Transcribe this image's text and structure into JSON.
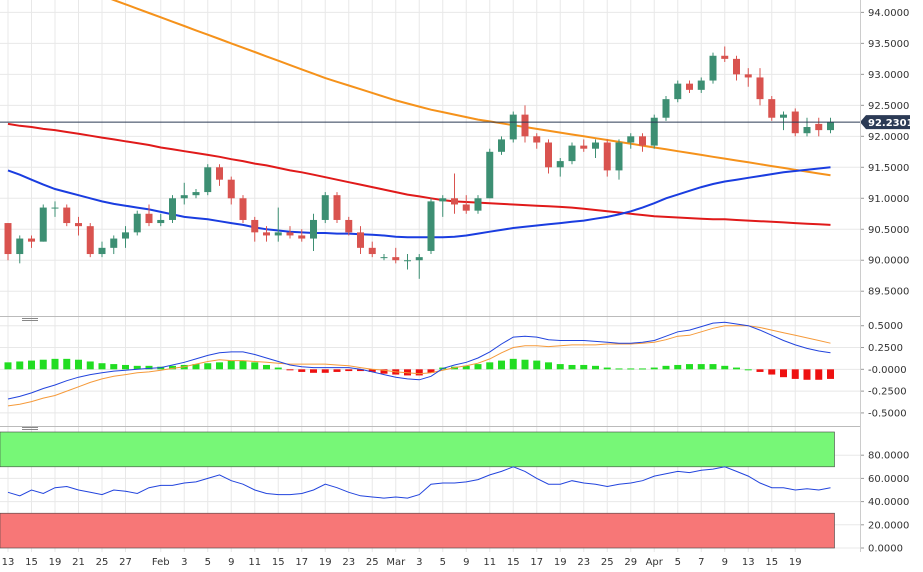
{
  "chart_data": [
    {
      "type": "candlestick",
      "name_note": "",
      "ylim": [
        89.1,
        94.2
      ],
      "y_ticks": [
        "94.0000",
        "93.5000",
        "93.0000",
        "92.5000",
        "92.0000",
        "91.5000",
        "91.0000",
        "90.5000",
        "90.0000",
        "89.5000"
      ],
      "y_tick_values": [
        94.0,
        93.5,
        93.0,
        92.5,
        92.0,
        91.5,
        91.0,
        90.5,
        90.0,
        89.5
      ],
      "last_price_label": "92.2301",
      "last_price": 92.23,
      "colors": {
        "up": "#3d8f73",
        "down": "#d9534f",
        "ma_fast": "#1a3de0",
        "ma_mid": "#e01a1a",
        "ma_slow": "#f5921b",
        "last_line": "#2b3a55",
        "label_bg": "#2b3a55"
      },
      "candles": [
        [
          90.6,
          90.6,
          90.0,
          90.1
        ],
        [
          90.1,
          90.4,
          89.95,
          90.35
        ],
        [
          90.35,
          90.4,
          90.2,
          90.3
        ],
        [
          90.3,
          90.9,
          90.3,
          90.85
        ],
        [
          90.85,
          90.95,
          90.7,
          90.85
        ],
        [
          90.85,
          90.9,
          90.55,
          90.6
        ],
        [
          90.6,
          90.7,
          90.4,
          90.55
        ],
        [
          90.55,
          90.6,
          90.05,
          90.1
        ],
        [
          90.1,
          90.3,
          90.05,
          90.2
        ],
        [
          90.2,
          90.4,
          90.1,
          90.35
        ],
        [
          90.35,
          90.55,
          90.2,
          90.45
        ],
        [
          90.45,
          90.8,
          90.4,
          90.75
        ],
        [
          90.75,
          90.9,
          90.55,
          90.6
        ],
        [
          90.6,
          90.75,
          90.55,
          90.65
        ],
        [
          90.65,
          91.05,
          90.6,
          91.0
        ],
        [
          91.0,
          91.25,
          90.9,
          91.05
        ],
        [
          91.05,
          91.15,
          91.0,
          91.1
        ],
        [
          91.1,
          91.55,
          91.05,
          91.5
        ],
        [
          91.5,
          91.55,
          91.2,
          91.3
        ],
        [
          91.3,
          91.35,
          90.9,
          91.0
        ],
        [
          91.0,
          91.05,
          90.6,
          90.65
        ],
        [
          90.65,
          90.7,
          90.3,
          90.45
        ],
        [
          90.45,
          90.55,
          90.3,
          90.4
        ],
        [
          90.4,
          90.85,
          90.3,
          90.45
        ],
        [
          90.45,
          90.55,
          90.35,
          90.4
        ],
        [
          90.4,
          90.5,
          90.3,
          90.35
        ],
        [
          90.35,
          90.75,
          90.15,
          90.65
        ],
        [
          90.65,
          91.1,
          90.6,
          91.05
        ],
        [
          91.05,
          91.1,
          90.6,
          90.65
        ],
        [
          90.65,
          90.7,
          90.4,
          90.45
        ],
        [
          90.45,
          90.55,
          90.1,
          90.2
        ],
        [
          90.2,
          90.3,
          90.05,
          90.1
        ],
        [
          90.05,
          90.1,
          90.0,
          90.05
        ],
        [
          90.05,
          90.2,
          89.95,
          90.0
        ],
        [
          90.0,
          90.1,
          89.85,
          90.0
        ],
        [
          90.0,
          90.1,
          89.7,
          90.05
        ],
        [
          90.15,
          91.0,
          90.1,
          90.95
        ],
        [
          90.95,
          91.05,
          90.7,
          91.0
        ],
        [
          91.0,
          91.4,
          90.75,
          90.9
        ],
        [
          90.9,
          91.05,
          90.75,
          90.8
        ],
        [
          90.8,
          91.05,
          90.75,
          91.0
        ],
        [
          91.0,
          91.8,
          91.0,
          91.75
        ],
        [
          91.75,
          92.0,
          91.7,
          91.95
        ],
        [
          91.95,
          92.4,
          91.9,
          92.35
        ],
        [
          92.35,
          92.5,
          91.9,
          92.0
        ],
        [
          92.0,
          92.05,
          91.8,
          91.9
        ],
        [
          91.9,
          91.95,
          91.4,
          91.5
        ],
        [
          91.5,
          91.65,
          91.35,
          91.6
        ],
        [
          91.6,
          91.9,
          91.55,
          91.85
        ],
        [
          91.85,
          91.95,
          91.75,
          91.8
        ],
        [
          91.8,
          91.95,
          91.65,
          91.9
        ],
        [
          91.9,
          91.95,
          91.35,
          91.45
        ],
        [
          91.45,
          91.95,
          91.3,
          91.9
        ],
        [
          91.9,
          92.05,
          91.8,
          92.0
        ],
        [
          92.0,
          92.05,
          91.75,
          91.85
        ],
        [
          91.85,
          92.35,
          91.8,
          92.3
        ],
        [
          92.3,
          92.65,
          92.25,
          92.6
        ],
        [
          92.6,
          92.9,
          92.55,
          92.85
        ],
        [
          92.85,
          92.9,
          92.7,
          92.75
        ],
        [
          92.75,
          92.95,
          92.7,
          92.9
        ],
        [
          92.9,
          93.35,
          92.85,
          93.3
        ],
        [
          93.3,
          93.45,
          93.2,
          93.25
        ],
        [
          93.25,
          93.3,
          92.9,
          93.0
        ],
        [
          93.0,
          93.1,
          92.8,
          92.95
        ],
        [
          92.95,
          93.1,
          92.5,
          92.6
        ],
        [
          92.6,
          92.65,
          92.25,
          92.3
        ],
        [
          92.3,
          92.4,
          92.1,
          92.35
        ],
        [
          92.4,
          92.45,
          92.0,
          92.05
        ],
        [
          92.05,
          92.3,
          92.0,
          92.15
        ],
        [
          92.2,
          92.3,
          92.0,
          92.1
        ],
        [
          92.1,
          92.3,
          92.05,
          92.23
        ]
      ],
      "ma_fast": [
        91.45,
        91.38,
        91.3,
        91.22,
        91.15,
        91.1,
        91.05,
        91.0,
        90.95,
        90.91,
        90.88,
        90.85,
        90.82,
        90.78,
        90.74,
        90.7,
        90.68,
        90.66,
        90.63,
        90.6,
        90.57,
        90.53,
        90.5,
        90.48,
        90.46,
        90.45,
        90.44,
        90.44,
        90.43,
        90.43,
        90.42,
        90.41,
        90.4,
        90.38,
        90.37,
        90.37,
        90.37,
        90.37,
        90.38,
        90.4,
        90.43,
        90.46,
        90.49,
        90.52,
        90.54,
        90.56,
        90.58,
        90.6,
        90.62,
        90.64,
        90.67,
        90.7,
        90.74,
        90.79,
        90.85,
        90.92,
        91.0,
        91.06,
        91.12,
        91.18,
        91.23,
        91.27,
        91.3,
        91.33,
        91.36,
        91.39,
        91.42,
        91.44,
        91.46,
        91.48,
        91.5
      ],
      "ma_mid": [
        92.2,
        92.17,
        92.15,
        92.12,
        92.1,
        92.07,
        92.04,
        92.01,
        91.98,
        91.95,
        91.92,
        91.89,
        91.86,
        91.82,
        91.79,
        91.76,
        91.73,
        91.7,
        91.67,
        91.63,
        91.6,
        91.56,
        91.53,
        91.49,
        91.45,
        91.42,
        91.38,
        91.34,
        91.3,
        91.26,
        91.22,
        91.18,
        91.14,
        91.1,
        91.06,
        91.03,
        91.0,
        90.97,
        90.95,
        90.94,
        90.93,
        90.92,
        90.91,
        90.9,
        90.89,
        90.88,
        90.87,
        90.86,
        90.85,
        90.83,
        90.81,
        90.79,
        90.77,
        90.75,
        90.73,
        90.71,
        90.7,
        90.69,
        90.68,
        90.67,
        90.66,
        90.66,
        90.65,
        90.64,
        90.63,
        90.62,
        90.61,
        90.6,
        90.59,
        90.58,
        90.57
      ],
      "ma_slow": [
        94.85,
        94.77,
        94.7,
        94.62,
        94.55,
        94.48,
        94.41,
        94.34,
        94.27,
        94.2,
        94.13,
        94.06,
        93.99,
        93.92,
        93.85,
        93.78,
        93.71,
        93.64,
        93.57,
        93.5,
        93.43,
        93.36,
        93.29,
        93.22,
        93.15,
        93.08,
        93.01,
        92.94,
        92.88,
        92.82,
        92.76,
        92.7,
        92.64,
        92.58,
        92.53,
        92.48,
        92.43,
        92.39,
        92.35,
        92.31,
        92.27,
        92.24,
        92.21,
        92.18,
        92.15,
        92.12,
        92.09,
        92.06,
        92.03,
        92.0,
        91.97,
        91.94,
        91.91,
        91.88,
        91.85,
        91.82,
        91.79,
        91.76,
        91.73,
        91.7,
        91.67,
        91.64,
        91.61,
        91.58,
        91.55,
        91.52,
        91.49,
        91.46,
        91.43,
        91.4,
        91.37
      ]
    },
    {
      "type": "macd",
      "ylim": [
        -0.65,
        0.6
      ],
      "y_ticks": [
        "0.5000",
        "0.2500",
        "-0.0000",
        "-0.2500",
        "-0.5000"
      ],
      "y_tick_values": [
        0.5,
        0.25,
        0.0,
        -0.25,
        -0.5
      ],
      "colors": {
        "hist_up": "#22dd22",
        "hist_down": "#ee1111",
        "macd": "#2244dd",
        "signal": "#f59a3a"
      },
      "histogram": [
        0.08,
        0.09,
        0.1,
        0.11,
        0.12,
        0.12,
        0.11,
        0.09,
        0.07,
        0.06,
        0.05,
        0.04,
        0.04,
        0.03,
        0.04,
        0.05,
        0.06,
        0.07,
        0.08,
        0.1,
        0.1,
        0.08,
        0.05,
        0.02,
        -0.01,
        -0.03,
        -0.04,
        -0.04,
        -0.03,
        -0.02,
        -0.02,
        -0.03,
        -0.05,
        -0.06,
        -0.07,
        -0.07,
        -0.04,
        0.02,
        0.03,
        0.04,
        0.06,
        0.08,
        0.1,
        0.12,
        0.11,
        0.1,
        0.08,
        0.06,
        0.05,
        0.05,
        0.04,
        0.02,
        0.01,
        0.01,
        0.01,
        0.02,
        0.04,
        0.05,
        0.06,
        0.06,
        0.06,
        0.04,
        0.02,
        0.0,
        -0.03,
        -0.06,
        -0.09,
        -0.11,
        -0.12,
        -0.12,
        -0.11
      ],
      "macd": [
        -0.34,
        -0.31,
        -0.27,
        -0.22,
        -0.18,
        -0.13,
        -0.09,
        -0.06,
        -0.04,
        -0.02,
        -0.01,
        0.0,
        0.01,
        0.02,
        0.05,
        0.08,
        0.12,
        0.16,
        0.19,
        0.2,
        0.2,
        0.17,
        0.13,
        0.09,
        0.05,
        0.03,
        0.02,
        0.02,
        0.02,
        0.02,
        0.0,
        -0.03,
        -0.06,
        -0.09,
        -0.11,
        -0.12,
        -0.08,
        0.01,
        0.05,
        0.08,
        0.13,
        0.2,
        0.29,
        0.37,
        0.38,
        0.37,
        0.34,
        0.33,
        0.33,
        0.33,
        0.32,
        0.31,
        0.3,
        0.3,
        0.31,
        0.33,
        0.38,
        0.43,
        0.45,
        0.49,
        0.53,
        0.54,
        0.52,
        0.5,
        0.45,
        0.39,
        0.33,
        0.28,
        0.24,
        0.21,
        0.19
      ],
      "signal": [
        -0.42,
        -0.4,
        -0.37,
        -0.33,
        -0.3,
        -0.25,
        -0.2,
        -0.15,
        -0.11,
        -0.08,
        -0.06,
        -0.04,
        -0.03,
        -0.01,
        0.01,
        0.03,
        0.06,
        0.09,
        0.11,
        0.1,
        0.1,
        0.09,
        0.08,
        0.07,
        0.06,
        0.06,
        0.06,
        0.06,
        0.05,
        0.04,
        0.02,
        0.0,
        -0.01,
        -0.03,
        -0.04,
        -0.05,
        -0.04,
        -0.01,
        0.02,
        0.04,
        0.07,
        0.12,
        0.19,
        0.25,
        0.27,
        0.27,
        0.26,
        0.27,
        0.28,
        0.28,
        0.28,
        0.29,
        0.29,
        0.29,
        0.3,
        0.31,
        0.34,
        0.38,
        0.39,
        0.43,
        0.47,
        0.5,
        0.5,
        0.5,
        0.48,
        0.45,
        0.42,
        0.39,
        0.36,
        0.33,
        0.3
      ]
    },
    {
      "type": "rsi",
      "ylim": [
        0,
        100
      ],
      "y_ticks": [
        "80.0000",
        "60.0000",
        "40.0000",
        "20.0000",
        "0.0000"
      ],
      "y_tick_values": [
        80,
        60,
        40,
        20,
        0
      ],
      "overbought_band": [
        70,
        100
      ],
      "oversold_band": [
        0,
        30
      ],
      "colors": {
        "overbought": "#77f777",
        "oversold": "#f77777",
        "line": "#2244dd"
      },
      "values": [
        48,
        45,
        50,
        47,
        52,
        53,
        50,
        48,
        46,
        50,
        49,
        47,
        52,
        54,
        54,
        56,
        57,
        60,
        63,
        58,
        55,
        50,
        47,
        46,
        46,
        47,
        50,
        55,
        52,
        48,
        45,
        44,
        43,
        44,
        43,
        46,
        55,
        56,
        56,
        57,
        59,
        63,
        66,
        70,
        66,
        60,
        55,
        55,
        58,
        56,
        55,
        53,
        55,
        56,
        58,
        62,
        64,
        66,
        65,
        67,
        68,
        70,
        66,
        62,
        56,
        52,
        52,
        50,
        51,
        50,
        52
      ]
    }
  ],
  "x_labels": [
    "13",
    "15",
    "19",
    "21",
    "25",
    "27",
    "Feb",
    "3",
    "5",
    "9",
    "11",
    "15",
    "17",
    "19",
    "23",
    "25",
    "Mar",
    "3",
    "5",
    "9",
    "11",
    "15",
    "17",
    "19",
    "23",
    "25",
    "29",
    "Apr",
    "5",
    "7",
    "9",
    "13",
    "15",
    "19"
  ],
  "x_label_values": [
    0,
    2,
    4,
    6,
    8,
    10,
    13,
    15,
    17,
    19,
    21,
    23,
    25,
    27,
    29,
    31,
    33,
    35,
    37,
    39,
    41,
    43,
    45,
    47,
    49,
    51,
    53,
    55,
    57,
    59,
    61,
    63,
    65,
    67
  ],
  "grid_color": "#e8e8e8"
}
